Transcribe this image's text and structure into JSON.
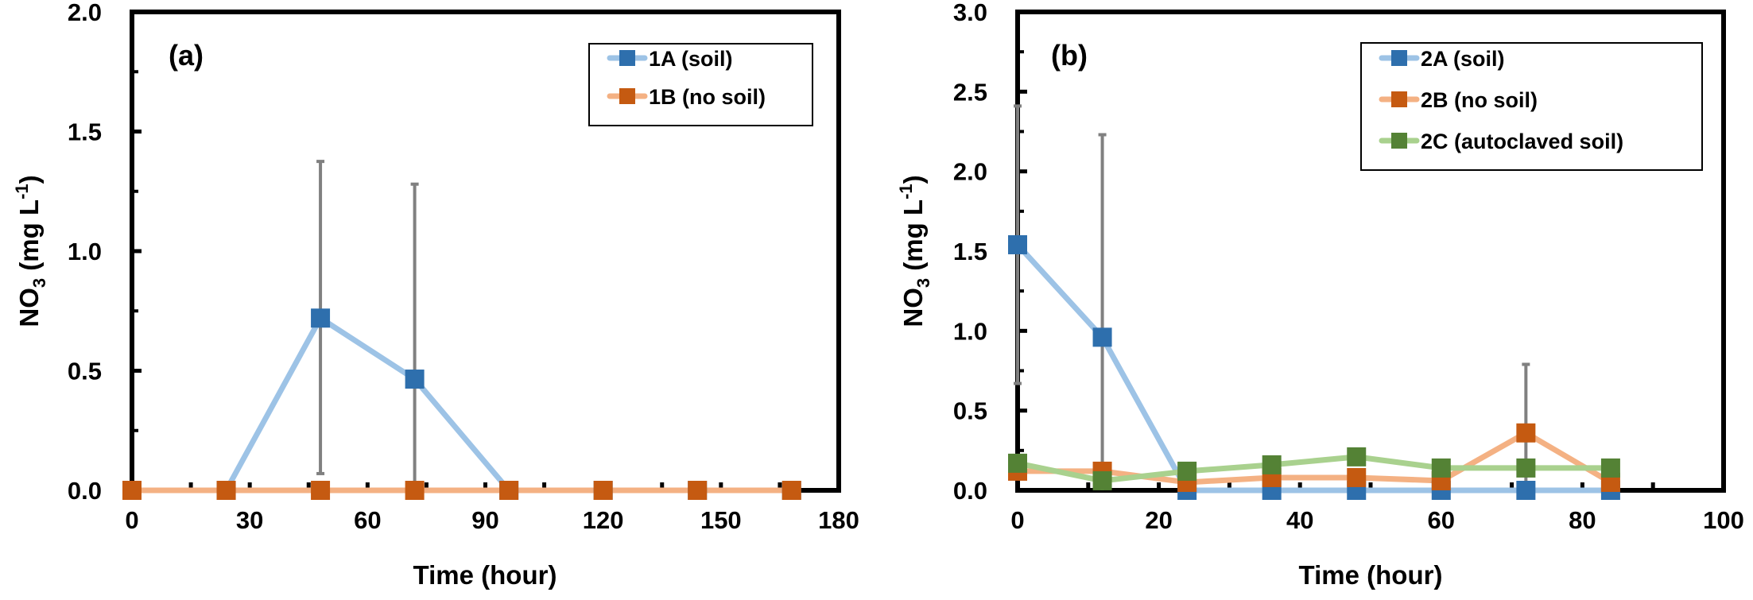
{
  "chart_data": [
    {
      "type": "line",
      "panel_label": "(a)",
      "title": "",
      "xlabel": "Time (hour)",
      "ylabel": "NO3 (mg L-1)",
      "ylabel_parts": {
        "main": "NO",
        "sub": "3",
        "unit": " (mg L",
        "sup": "-1",
        "close": ")"
      },
      "xlim": [
        0,
        180
      ],
      "ylim": [
        0,
        2.0
      ],
      "xticks": [
        0,
        30,
        60,
        90,
        120,
        150,
        180
      ],
      "xtick_labels": [
        "0",
        "30",
        "60",
        "90",
        "120",
        "150",
        "180"
      ],
      "x_minor_step": 15,
      "yticks": [
        0,
        0.5,
        1.0,
        1.5,
        2.0
      ],
      "ytick_labels": [
        "0.0",
        "0.5",
        "1.0",
        "1.5",
        "2.0"
      ],
      "y_minor_step": 0.25,
      "grid": false,
      "legend_position": "top-right",
      "series": [
        {
          "name": "1A (soil)",
          "marker_color": "#2e6fad",
          "line_color": "#9dc3e6",
          "x": [
            0,
            24,
            48,
            72,
            96,
            120,
            144,
            168
          ],
          "y": [
            0,
            0,
            0.72,
            0.465,
            0,
            0,
            0,
            0
          ],
          "error_upper": [
            null,
            null,
            1.375,
            1.28,
            null,
            null,
            null,
            null
          ],
          "error_lower": [
            null,
            null,
            0.07,
            0,
            null,
            null,
            null,
            null
          ]
        },
        {
          "name": "1B (no soil)",
          "marker_color": "#c55a11",
          "line_color": "#f4b183",
          "x": [
            0,
            24,
            48,
            72,
            96,
            120,
            144,
            168
          ],
          "y": [
            0,
            0,
            0,
            0,
            0,
            0,
            0,
            0
          ],
          "error_upper": [
            null,
            null,
            null,
            null,
            null,
            null,
            null,
            null
          ],
          "error_lower": [
            null,
            null,
            null,
            null,
            null,
            null,
            null,
            null
          ]
        }
      ]
    },
    {
      "type": "line",
      "panel_label": "(b)",
      "title": "",
      "xlabel": "Time (hour)",
      "ylabel": "NO3 (mg L-1)",
      "ylabel_parts": {
        "main": "NO",
        "sub": "3",
        "unit": " (mg L",
        "sup": "-1",
        "close": ")"
      },
      "xlim": [
        0,
        100
      ],
      "ylim": [
        0,
        3.0
      ],
      "xticks": [
        0,
        20,
        40,
        60,
        80,
        100
      ],
      "xtick_labels": [
        "0",
        "20",
        "40",
        "60",
        "80",
        "100"
      ],
      "x_minor_step": 10,
      "yticks": [
        0,
        0.5,
        1.0,
        1.5,
        2.0,
        2.5,
        3.0
      ],
      "ytick_labels": [
        "0.0",
        "0.5",
        "1.0",
        "1.5",
        "2.0",
        "2.5",
        "3.0"
      ],
      "y_minor_step": 0.25,
      "grid": false,
      "legend_position": "top-right",
      "series": [
        {
          "name": "2A (soil)",
          "marker_color": "#2e6fad",
          "line_color": "#9dc3e6",
          "x": [
            0,
            12,
            24,
            36,
            48,
            60,
            72,
            84
          ],
          "y": [
            1.54,
            0.96,
            0,
            0,
            0,
            0,
            0,
            0
          ],
          "error_upper": [
            2.41,
            2.23,
            null,
            null,
            null,
            null,
            null,
            null
          ],
          "error_lower": [
            0.67,
            0,
            null,
            null,
            null,
            null,
            null,
            null
          ]
        },
        {
          "name": "2B (no soil)",
          "marker_color": "#c55a11",
          "line_color": "#f4b183",
          "x": [
            0,
            12,
            24,
            36,
            48,
            60,
            72,
            84
          ],
          "y": [
            0.12,
            0.12,
            0.05,
            0.08,
            0.08,
            0.06,
            0.36,
            0.05
          ],
          "error_upper": [
            null,
            null,
            null,
            null,
            null,
            null,
            0.79,
            null
          ],
          "error_lower": [
            null,
            null,
            null,
            null,
            null,
            null,
            0,
            null
          ]
        },
        {
          "name": "2C (autoclaved soil)",
          "marker_color": "#548235",
          "line_color": "#a9d18e",
          "x": [
            0,
            12,
            24,
            36,
            48,
            60,
            72,
            84
          ],
          "y": [
            0.17,
            0.06,
            0.12,
            0.16,
            0.21,
            0.14,
            0.14,
            0.14
          ],
          "error_upper": [
            null,
            null,
            null,
            null,
            null,
            null,
            null,
            null
          ],
          "error_lower": [
            null,
            null,
            null,
            null,
            null,
            null,
            null,
            null
          ]
        }
      ]
    }
  ]
}
